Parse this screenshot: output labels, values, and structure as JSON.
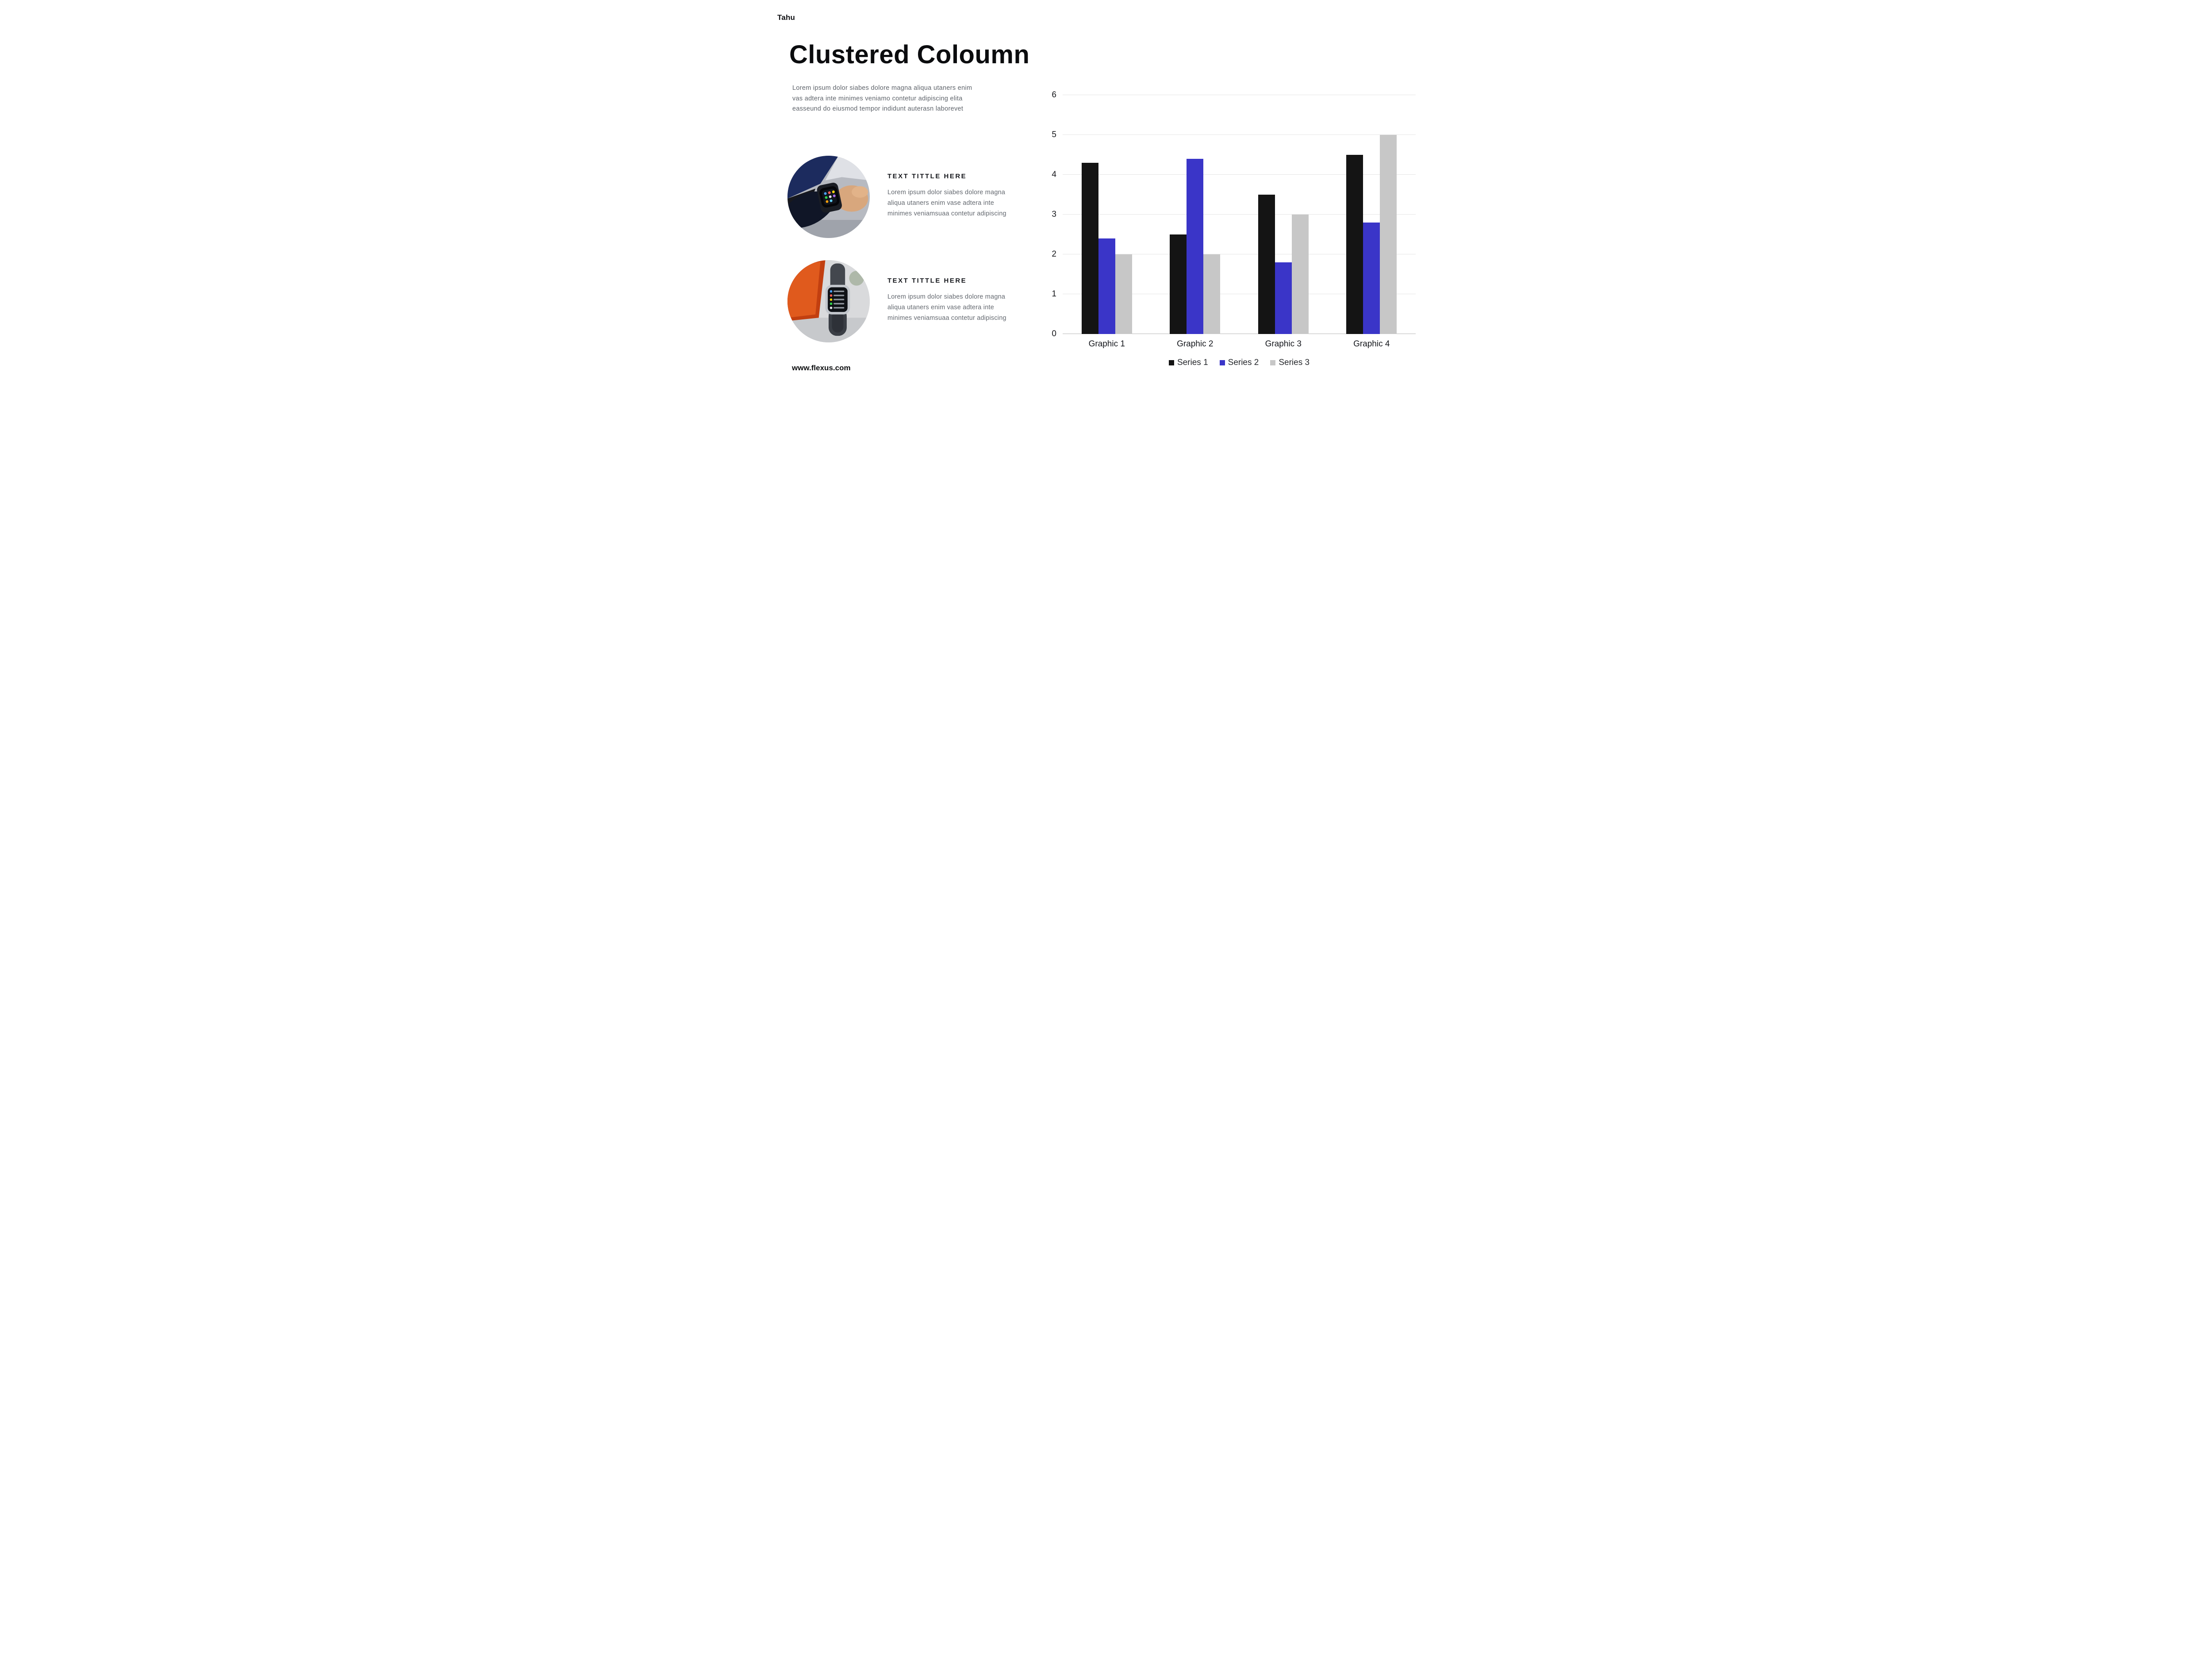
{
  "brand": "Tahu",
  "title": "Clustered Coloumn",
  "intro_lines": [
    "Lorem ipsum dolor siabes dolore magna aliqua utaners enim",
    "vas adtera inte minimes veniamo contetur adipiscing elita",
    "easseund do eiusmod tempor indidunt auterasn laborevet"
  ],
  "features": [
    {
      "title": "TEXT TITTLE HERE",
      "alt": "smartwatch on wrist over laptop keyboard",
      "lines": [
        "Lorem ipsum dolor siabes dolore magna",
        "aliqua utaners enim vase adtera inte",
        "minimes veniamsuaa contetur adipiscing"
      ]
    },
    {
      "title": "TEXT TITTLE HERE",
      "alt": "smartwatch with app list standing on desk",
      "lines": [
        "Lorem ipsum dolor siabes dolore magna",
        "aliqua utaners enim vase adtera inte",
        "minimes veniamsuaa contetur adipiscing"
      ]
    }
  ],
  "footer_link": "www.flexus.com",
  "chart_data": {
    "type": "bar",
    "title": "",
    "categories": [
      "Graphic 1",
      "Graphic 2",
      "Graphic 3",
      "Graphic 4"
    ],
    "series": [
      {
        "name": "Series 1",
        "color": "#141414",
        "values": [
          4.3,
          2.5,
          3.5,
          4.5
        ]
      },
      {
        "name": "Series 2",
        "color": "#3a35c8",
        "values": [
          2.4,
          4.4,
          1.8,
          2.8
        ]
      },
      {
        "name": "Series 3",
        "color": "#c7c7c7",
        "values": [
          2.0,
          2.0,
          3.0,
          5.0
        ]
      }
    ],
    "xlabel": "",
    "ylabel": "",
    "ylim": [
      0,
      6
    ],
    "yticks": [
      0,
      1,
      2,
      3,
      4,
      5,
      6
    ],
    "grid": true,
    "gridline_color": "#e5e5e5",
    "legend_position": "bottom"
  }
}
